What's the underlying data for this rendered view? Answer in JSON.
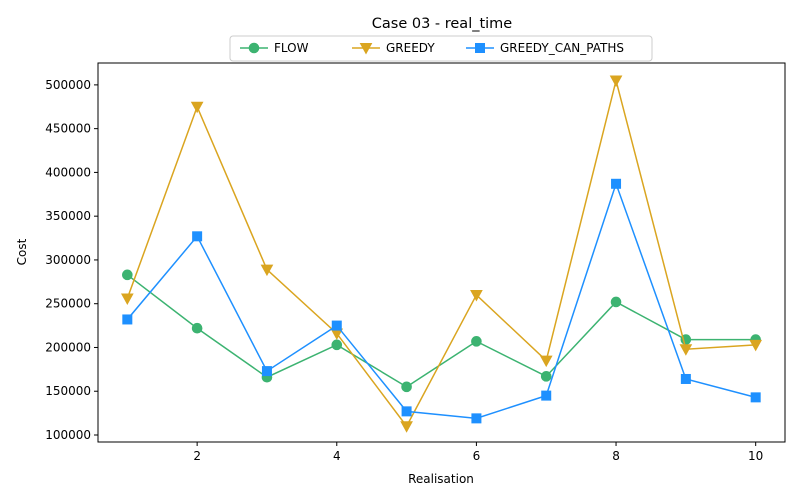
{
  "chart_data": {
    "type": "line",
    "title": "Case 03 - real_time",
    "xlabel": "Realisation",
    "ylabel": "Cost",
    "xlim": [
      0.58,
      10.42
    ],
    "ylim": [
      92000,
      525000
    ],
    "xticks": [
      2,
      4,
      6,
      8,
      10
    ],
    "yticks": [
      100000,
      150000,
      200000,
      250000,
      300000,
      350000,
      400000,
      450000,
      500000
    ],
    "grid": false,
    "legend": "top-center",
    "x": [
      1,
      2,
      3,
      4,
      5,
      6,
      7,
      8,
      9,
      10
    ],
    "series": [
      {
        "name": "FLOW",
        "color": "#3cb371",
        "marker": "circle",
        "values": [
          283000,
          222000,
          166000,
          203000,
          155000,
          207000,
          167000,
          252000,
          209000,
          209000
        ]
      },
      {
        "name": "GREEDY",
        "color": "#daa520",
        "marker": "triangle-down",
        "values": [
          256000,
          475000,
          289000,
          216000,
          110000,
          260000,
          185000,
          505000,
          198000,
          203000
        ]
      },
      {
        "name": "GREEDY_CAN_PATHS",
        "color": "#1e90ff",
        "marker": "square",
        "values": [
          232000,
          327000,
          173000,
          225000,
          127000,
          119000,
          145000,
          387000,
          164000,
          143000
        ]
      }
    ]
  }
}
